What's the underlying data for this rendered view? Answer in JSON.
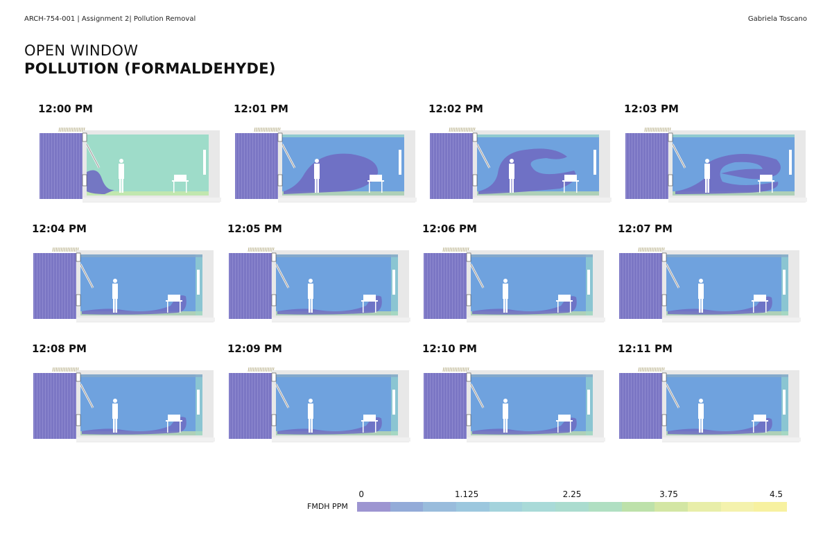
{
  "header": {
    "left": "ARCH-754-001  | Assignment 2| Pollution Removal",
    "right": "Gabriela Toscano"
  },
  "title": {
    "line1": "OPEN WINDOW",
    "line2": "POLLUTION (FORMALDEHYDE)"
  },
  "frames": [
    {
      "time": "12:00 PM",
      "stage": 0
    },
    {
      "time": "12:01 PM",
      "stage": 1
    },
    {
      "time": "12:02 PM",
      "stage": 2
    },
    {
      "time": "12:03 PM",
      "stage": 3
    },
    {
      "time": "12:04 PM",
      "stage": 4
    },
    {
      "time": "12:05 PM",
      "stage": 5
    },
    {
      "time": "12:06 PM",
      "stage": 6
    },
    {
      "time": "12:07 PM",
      "stage": 7
    },
    {
      "time": "12:08 PM",
      "stage": 8
    },
    {
      "time": "12:09 PM",
      "stage": 9
    },
    {
      "time": "12:10 PM",
      "stage": 10
    },
    {
      "time": "12:11 PM",
      "stage": 11
    }
  ],
  "legend": {
    "label": "FMDH PPM",
    "ticks": [
      "0",
      "1.125",
      "2.25",
      "3.75",
      "4.5"
    ],
    "tick_values": [
      0,
      1.125,
      2.25,
      3.75,
      4.5
    ],
    "max": 4.5,
    "colors": [
      "#9d95d1",
      "#93abd8",
      "#99bcdc",
      "#9cc7de",
      "#a4d3dc",
      "#a9dad8",
      "#abdccf",
      "#b0dfc2",
      "#bde1aa",
      "#d3e6a4",
      "#e8eea9",
      "#f4f2ad",
      "#f7f1a0"
    ]
  },
  "colors": {
    "outside": "#7b76c4",
    "low": "#6f6cc2",
    "mid": "#6fa2de",
    "high": "#9edcc9",
    "floor": "#d9ef9e"
  }
}
